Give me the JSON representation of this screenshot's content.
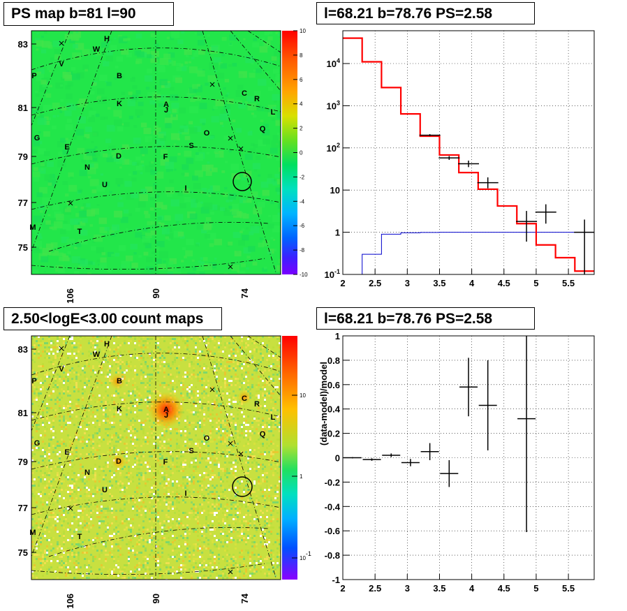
{
  "panels": {
    "tl_title": "PS map b=81 l=90",
    "tr_title": "l=68.21 b=78.76 PS=2.58",
    "bl_title": "2.50<logE<3.00 count maps",
    "br_title": "l=68.21 b=78.76 PS=2.58"
  },
  "colors": {
    "model_line": "#ff0000",
    "background_line": "#0000cc",
    "data_points": "#000000",
    "ps_map_bg": "#22e64a",
    "count_map_bg": "#c8e040"
  },
  "chart_data": [
    {
      "type": "heatmap",
      "name_hint": "ps-map",
      "title": "PS map b=81 l=90",
      "y_ticks": [
        "83",
        "81",
        "79",
        "77",
        "75"
      ],
      "x_ticks": [
        "106",
        "90",
        "74"
      ],
      "colorbar": {
        "min": -10,
        "max": 10,
        "ticks": [
          "10",
          "8",
          "6",
          "4",
          "2",
          "0",
          "-2",
          "-4",
          "-6",
          "-8",
          "-10"
        ]
      },
      "sources": [
        "H",
        "W",
        "V",
        "P",
        "B",
        "C",
        "R",
        "K",
        "A",
        "J",
        "L",
        "Q",
        "G",
        "O",
        "E",
        "S",
        "D",
        "F",
        "N",
        "U",
        "I",
        "M",
        "T"
      ],
      "grid": true
    },
    {
      "type": "line",
      "name_hint": "spectrum",
      "title": "l=68.21 b=78.76 PS=2.58",
      "xlim": [
        2,
        5.9
      ],
      "ylim": [
        0.1,
        60000
      ],
      "log_y": true,
      "x_ticks": [
        "2",
        "2.5",
        "3",
        "3.5",
        "4",
        "4.5",
        "5",
        "5.5"
      ],
      "y_ticks": [
        "10^-1",
        "1",
        "10",
        "10^2",
        "10^3",
        "10^4"
      ],
      "edges": [
        2.0,
        2.3,
        2.6,
        2.9,
        3.2,
        3.5,
        3.8,
        4.1,
        4.4,
        4.7,
        5.0,
        5.3,
        5.6,
        5.9
      ],
      "series": [
        {
          "values": [
            40000,
            11000,
            2700,
            640,
            190,
            68,
            26,
            10.5,
            4.2,
            1.6,
            0.5,
            0.25,
            0.12
          ]
        },
        {
          "values": [
            0.1,
            0.3,
            0.9,
            0.97,
            0.99,
            1.0,
            1.0,
            1.0,
            1.0,
            1.0,
            1.0,
            1.0,
            1.0
          ]
        }
      ],
      "data_points": [
        {
          "x": 3.35,
          "y": 200,
          "ylo": 190,
          "yhi": 212
        },
        {
          "x": 3.65,
          "y": 58,
          "ylo": 52,
          "yhi": 64
        },
        {
          "x": 3.95,
          "y": 42,
          "ylo": 35,
          "yhi": 50
        },
        {
          "x": 4.25,
          "y": 15,
          "ylo": 11,
          "yhi": 20
        },
        {
          "x": 4.85,
          "y": 1.8,
          "ylo": 0.6,
          "yhi": 3.2
        },
        {
          "x": 5.15,
          "y": 3.0,
          "ylo": 1.6,
          "yhi": 4.6
        },
        {
          "x": 5.75,
          "y": 1.0,
          "ylo": 0.1,
          "yhi": 2.0
        }
      ]
    },
    {
      "type": "heatmap",
      "name_hint": "count-map",
      "title": "2.50<logE<3.00 count maps",
      "y_ticks": [
        "83",
        "81",
        "79",
        "77",
        "75"
      ],
      "x_ticks": [
        "106",
        "90",
        "74"
      ],
      "colorbar": {
        "log": true,
        "ticks": [
          "10",
          "1",
          "10^-1"
        ]
      },
      "grid": true
    },
    {
      "type": "scatter",
      "name_hint": "residuals",
      "title": "l=68.21 b=78.76 PS=2.58",
      "ylabel": "(data-model)/model",
      "xlim": [
        2,
        5.9
      ],
      "ylim": [
        -1,
        1
      ],
      "x_ticks": [
        "2",
        "2.5",
        "3",
        "3.5",
        "4",
        "4.5",
        "5",
        "5.5"
      ],
      "y_ticks": [
        "1",
        "0.8",
        "0.6",
        "0.4",
        "0.2",
        "0",
        "-0.2",
        "-0.4",
        "-0.6",
        "-0.8",
        "-1"
      ],
      "points": [
        {
          "x": 2.15,
          "y": 0.0,
          "err": 0.005
        },
        {
          "x": 2.45,
          "y": -0.015,
          "err": 0.01
        },
        {
          "x": 2.75,
          "y": 0.02,
          "err": 0.015
        },
        {
          "x": 3.05,
          "y": -0.04,
          "err": 0.03
        },
        {
          "x": 3.35,
          "y": 0.05,
          "err": 0.07
        },
        {
          "x": 3.65,
          "y": -0.13,
          "err": 0.11
        },
        {
          "x": 3.95,
          "y": 0.58,
          "err": 0.24
        },
        {
          "x": 4.25,
          "y": 0.43,
          "err": 0.37
        },
        {
          "x": 4.85,
          "y": 0.32,
          "err": 0.93
        }
      ]
    }
  ]
}
